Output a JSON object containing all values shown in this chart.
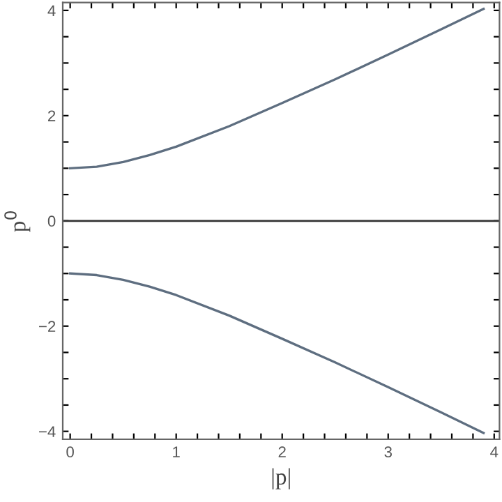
{
  "chart_data": {
    "type": "line",
    "xlabel": "|p|",
    "ylabel": "p$^{0}$",
    "xlim": [
      -0.07,
      4.05
    ],
    "ylim": [
      -4.15,
      4.15
    ],
    "xticks": [
      0,
      {
        "value": 0.2,
        "label": null
      },
      {
        "value": 0.4,
        "label": null
      },
      {
        "value": 0.6,
        "label": null
      },
      {
        "value": 0.8,
        "label": null
      },
      1,
      {
        "value": 1.2,
        "label": null
      },
      {
        "value": 1.4,
        "label": null
      },
      {
        "value": 1.6,
        "label": null
      },
      {
        "value": 1.8,
        "label": null
      },
      2,
      {
        "value": 2.2,
        "label": null
      },
      {
        "value": 2.4,
        "label": null
      },
      {
        "value": 2.6,
        "label": null
      },
      {
        "value": 2.8,
        "label": null
      },
      3,
      {
        "value": 3.2,
        "label": null
      },
      {
        "value": 3.4,
        "label": null
      },
      {
        "value": 3.6,
        "label": null
      },
      {
        "value": 3.8,
        "label": null
      },
      4
    ],
    "yticks": [
      {
        "value": -4,
        "label": "−4"
      },
      {
        "value": -3.5,
        "label": null
      },
      {
        "value": -3,
        "label": null
      },
      {
        "value": -2.5,
        "label": null
      },
      {
        "value": -2,
        "label": "−2"
      },
      {
        "value": -1.5,
        "label": null
      },
      {
        "value": -1,
        "label": null
      },
      {
        "value": -0.5,
        "label": null
      },
      0,
      {
        "value": 0.5,
        "label": null
      },
      {
        "value": 1,
        "label": null
      },
      {
        "value": 1.5,
        "label": null
      },
      2,
      {
        "value": 2.5,
        "label": null
      },
      {
        "value": 3,
        "label": null
      },
      {
        "value": 3.5,
        "label": null
      },
      4
    ],
    "x": [
      0,
      0.25,
      0.5,
      0.75,
      1,
      1.5,
      2,
      2.5,
      3,
      3.5,
      3.9
    ],
    "series": [
      {
        "color": "#5e6e80",
        "values": [
          1,
          1.03,
          1.12,
          1.25,
          1.41,
          1.8,
          2.24,
          2.69,
          3.16,
          3.64,
          4.03
        ]
      },
      {
        "color": "#5e6e80",
        "values": [
          -1,
          -1.03,
          -1.12,
          -1.25,
          -1.41,
          -1.8,
          -2.24,
          -2.69,
          -3.16,
          -3.64,
          -4.03
        ]
      }
    ],
    "ref_lines": [
      {
        "axis": "y",
        "value": 0,
        "color": "#333333",
        "line_style": "solid"
      }
    ],
    "grid": false,
    "legend": false,
    "marker": "none",
    "line_style": "solid"
  }
}
